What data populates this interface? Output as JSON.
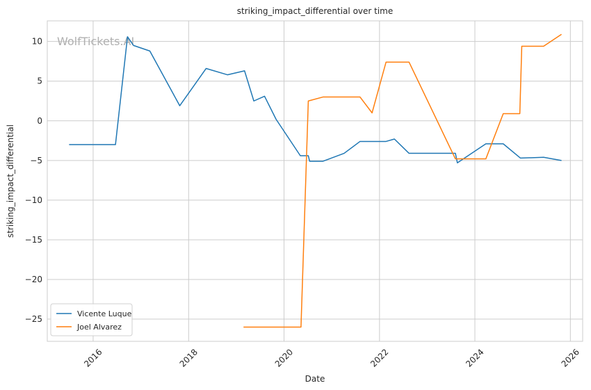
{
  "chart_data": {
    "type": "line",
    "title": "striking_impact_differential over time",
    "xlabel": "Date",
    "ylabel": "striking_impact_differential",
    "watermark": "WolfTickets.AI",
    "x_axis": "date",
    "xlim": [
      "2015-01-15",
      "2026-04-05"
    ],
    "ylim": [
      -27.8,
      12.6
    ],
    "x_ticks": [
      "2016",
      "2018",
      "2020",
      "2022",
      "2024",
      "2026"
    ],
    "y_ticks": [
      10,
      5,
      0,
      -5,
      -10,
      -15,
      -20,
      -25
    ],
    "y_tick_labels": [
      "10",
      "5",
      "0",
      "−5",
      "−10",
      "−15",
      "−20",
      "−25"
    ],
    "grid": true,
    "legend_position": "lower-left",
    "series": [
      {
        "name": "Vicente Luque",
        "color": "#1f77b4",
        "points": [
          [
            "2015-07-01",
            -3.0
          ],
          [
            "2016-06-20",
            -3.0
          ],
          [
            "2016-09-20",
            10.6
          ],
          [
            "2016-11-05",
            9.5
          ],
          [
            "2017-03-10",
            8.8
          ],
          [
            "2017-10-25",
            1.9
          ],
          [
            "2018-05-15",
            6.6
          ],
          [
            "2018-10-25",
            5.8
          ],
          [
            "2019-03-05",
            6.3
          ],
          [
            "2019-05-15",
            2.5
          ],
          [
            "2019-08-05",
            3.1
          ],
          [
            "2019-11-01",
            0.2
          ],
          [
            "2020-05-05",
            -4.4
          ],
          [
            "2020-07-05",
            -4.4
          ],
          [
            "2020-07-15",
            -5.1
          ],
          [
            "2020-10-25",
            -5.1
          ],
          [
            "2021-04-05",
            -4.1
          ],
          [
            "2021-08-05",
            -2.6
          ],
          [
            "2022-02-20",
            -2.6
          ],
          [
            "2022-04-25",
            -2.3
          ],
          [
            "2022-08-15",
            -4.1
          ],
          [
            "2023-08-05",
            -4.1
          ],
          [
            "2023-08-20",
            -5.3
          ],
          [
            "2024-03-25",
            -2.9
          ],
          [
            "2024-08-05",
            -2.9
          ],
          [
            "2024-12-15",
            -4.7
          ],
          [
            "2025-06-10",
            -4.6
          ],
          [
            "2025-10-25",
            -5.0
          ]
        ]
      },
      {
        "name": "Joel Alvarez",
        "color": "#ff7f0e",
        "points": [
          [
            "2019-02-25",
            -26.0
          ],
          [
            "2020-05-10",
            -26.0
          ],
          [
            "2020-07-05",
            2.5
          ],
          [
            "2020-10-25",
            3.0
          ],
          [
            "2021-08-05",
            3.0
          ],
          [
            "2021-11-05",
            1.0
          ],
          [
            "2022-02-20",
            7.4
          ],
          [
            "2022-08-15",
            7.4
          ],
          [
            "2023-08-05",
            -4.8
          ],
          [
            "2024-03-25",
            -4.8
          ],
          [
            "2024-08-05",
            0.9
          ],
          [
            "2024-12-10",
            0.9
          ],
          [
            "2024-12-25",
            9.4
          ],
          [
            "2025-06-10",
            9.4
          ],
          [
            "2025-10-25",
            10.9
          ]
        ]
      }
    ]
  }
}
